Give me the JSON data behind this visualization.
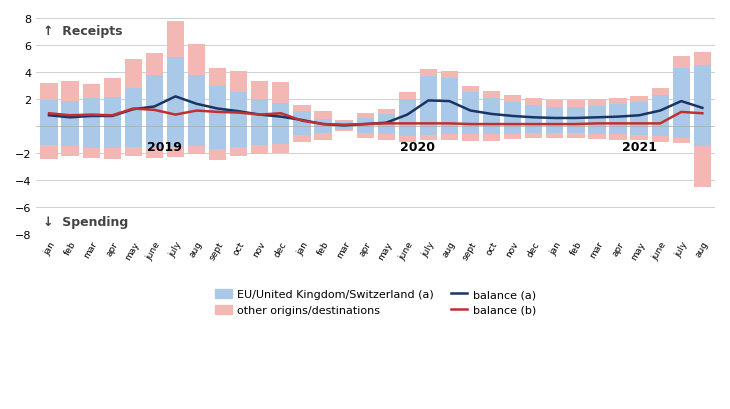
{
  "months": [
    "jan",
    "feb",
    "mar",
    "apr",
    "may",
    "june",
    "july",
    "aug",
    "sept",
    "oct",
    "nov",
    "dec",
    "jan",
    "feb",
    "mar",
    "apr",
    "may",
    "june",
    "july",
    "aug",
    "sept",
    "oct",
    "nov",
    "dec",
    "jan",
    "feb",
    "mar",
    "apr",
    "may",
    "june",
    "july",
    "aug"
  ],
  "year_labels": [
    {
      "label": "2019",
      "index": 5.5
    },
    {
      "label": "2020",
      "index": 17.5
    },
    {
      "label": "2021",
      "index": 28.0
    }
  ],
  "receipts_eu": [
    1.9,
    1.85,
    2.1,
    2.15,
    2.8,
    3.8,
    5.1,
    3.8,
    3.0,
    2.5,
    2.0,
    1.7,
    1.1,
    0.5,
    0.3,
    0.6,
    0.9,
    2.0,
    3.7,
    3.55,
    2.5,
    2.1,
    1.8,
    1.55,
    1.4,
    1.4,
    1.5,
    1.6,
    1.75,
    2.3,
    4.3,
    4.5
  ],
  "receipts_other": [
    1.3,
    1.5,
    1.0,
    1.4,
    2.2,
    1.6,
    2.65,
    2.3,
    1.3,
    1.55,
    1.3,
    1.55,
    0.45,
    0.65,
    0.15,
    0.4,
    0.4,
    0.5,
    0.55,
    0.5,
    0.5,
    0.5,
    0.5,
    0.5,
    0.5,
    0.5,
    0.5,
    0.5,
    0.5,
    0.5,
    0.9,
    1.0
  ],
  "spending_eu": [
    -1.4,
    -1.5,
    -1.65,
    -1.6,
    -1.55,
    -1.65,
    -1.55,
    -1.5,
    -1.7,
    -1.55,
    -1.4,
    -1.3,
    -0.65,
    -0.5,
    -0.2,
    -0.5,
    -0.6,
    -0.75,
    -0.65,
    -0.6,
    -0.6,
    -0.6,
    -0.55,
    -0.5,
    -0.5,
    -0.5,
    -0.55,
    -0.6,
    -0.65,
    -0.75,
    -0.85,
    -1.5
  ],
  "spending_other": [
    -1.0,
    -0.7,
    -0.7,
    -0.8,
    -0.7,
    -0.7,
    -0.75,
    -0.6,
    -0.8,
    -0.7,
    -0.7,
    -0.7,
    -0.5,
    -0.5,
    -0.2,
    -0.4,
    -0.4,
    -0.4,
    -0.4,
    -0.4,
    -0.5,
    -0.5,
    -0.4,
    -0.4,
    -0.4,
    -0.4,
    -0.4,
    -0.4,
    -0.4,
    -0.4,
    -0.4,
    -3.0
  ],
  "balance_a": [
    0.8,
    0.65,
    0.75,
    0.75,
    1.25,
    1.45,
    2.2,
    1.65,
    1.3,
    1.1,
    0.85,
    0.7,
    0.45,
    0.15,
    0.05,
    0.15,
    0.25,
    0.85,
    1.9,
    1.85,
    1.15,
    0.9,
    0.75,
    0.65,
    0.6,
    0.6,
    0.65,
    0.7,
    0.8,
    1.15,
    1.85,
    1.35
  ],
  "balance_b": [
    0.95,
    0.8,
    0.85,
    0.8,
    1.3,
    1.2,
    0.85,
    1.15,
    1.05,
    1.0,
    0.85,
    0.95,
    0.4,
    0.15,
    0.1,
    0.15,
    0.2,
    0.2,
    0.2,
    0.2,
    0.15,
    0.15,
    0.15,
    0.15,
    0.15,
    0.15,
    0.2,
    0.2,
    0.2,
    0.2,
    1.05,
    0.95
  ],
  "color_eu": "#aac8e8",
  "color_other": "#f4b8b4",
  "color_balance_a": "#1a3464",
  "color_balance_b": "#c03030",
  "ylim": [
    -8,
    8
  ],
  "yticks": [
    -8,
    -6,
    -4,
    -2,
    2,
    4,
    6,
    8
  ],
  "ylabel_receipts": "↑  Receipts",
  "ylabel_spending": "↓  Spending",
  "legend_eu": "EU/United Kingdom/Switzerland (a)",
  "legend_other": "other origins/destinations",
  "legend_balance_a": "balance (a)",
  "legend_balance_b": "balance (b)",
  "bar_width": 0.82
}
